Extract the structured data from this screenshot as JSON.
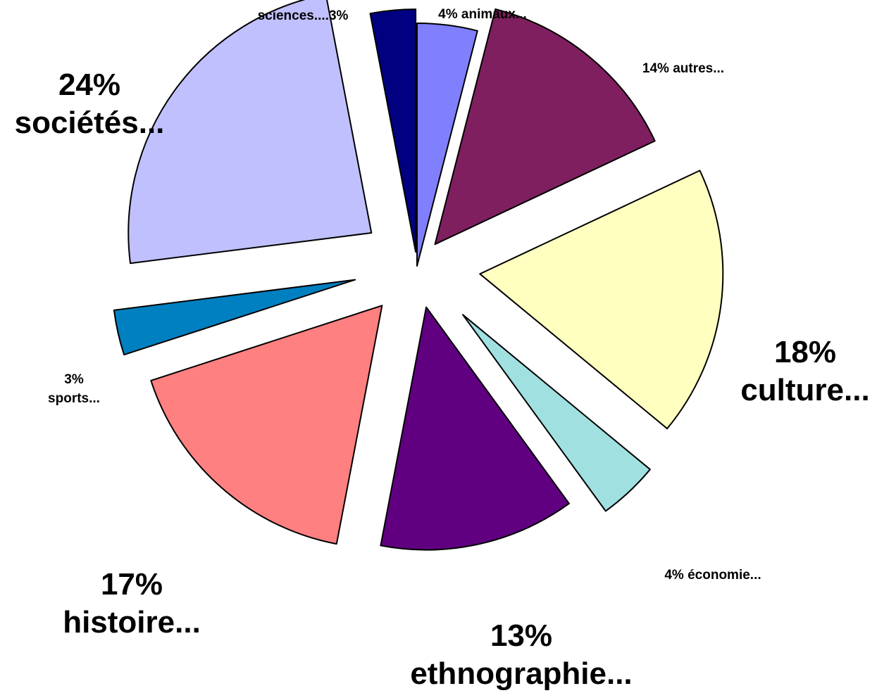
{
  "chart_data": {
    "type": "pie",
    "exploded": true,
    "slices": [
      {
        "label_lines": [
          "4% animaux..."
        ],
        "value": 4,
        "color": "#8080ff"
      },
      {
        "label_lines": [
          "14% autres..."
        ],
        "value": 14,
        "color": "#7f1f5f"
      },
      {
        "label_lines": [
          "18%",
          "culture..."
        ],
        "value": 18,
        "color": "#ffffc0"
      },
      {
        "label_lines": [
          "4%  économie..."
        ],
        "value": 4,
        "color": "#a0e0e0"
      },
      {
        "label_lines": [
          "13%",
          "ethnographie..."
        ],
        "value": 13,
        "color": "#600080"
      },
      {
        "label_lines": [
          "17%",
          "histoire..."
        ],
        "value": 17,
        "color": "#ff8080"
      },
      {
        "label_lines": [
          "3%",
          "sports..."
        ],
        "value": 3,
        "color": "#0080c0"
      },
      {
        "label_lines": [
          "24%",
          "sociétés..."
        ],
        "value": 24,
        "color": "#c0c0ff"
      },
      {
        "label_lines": [
          "sciences....3%"
        ],
        "value": 3,
        "color": "#000080"
      }
    ]
  }
}
